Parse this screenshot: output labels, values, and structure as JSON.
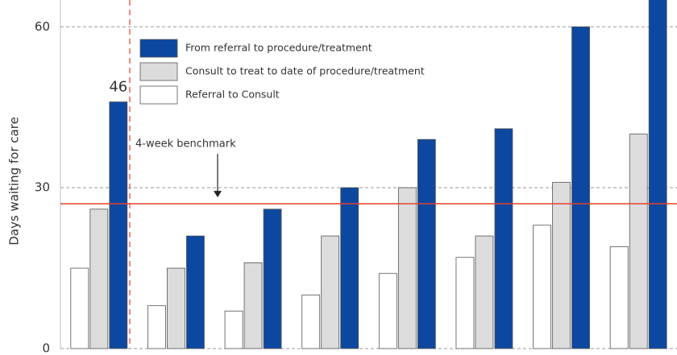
{
  "chart_data": {
    "type": "bar",
    "y_label": "Days waiting for care",
    "categories": [
      null,
      null,
      null,
      null,
      null,
      null,
      null,
      null
    ],
    "series": [
      {
        "name": "From referral to procedure/treatment",
        "color": "#0d48a0",
        "values": [
          46,
          21,
          26,
          30,
          39,
          41,
          60,
          66
        ]
      },
      {
        "name": "Consult to treat to date of procedure/treatment",
        "color": "#dcdcdc",
        "values": [
          26,
          15,
          16,
          21,
          30,
          21,
          31,
          40
        ]
      },
      {
        "name": "Referral to Consult",
        "color": "#ffffff",
        "values": [
          15,
          8,
          7,
          10,
          14,
          17,
          23,
          19
        ]
      }
    ],
    "ylim": [
      0,
      65
    ],
    "yticks": [
      0,
      30,
      60
    ],
    "grid": true,
    "benchmark": {
      "value": 27,
      "label": "4-week benchmark",
      "color": "#e8402a"
    }
  }
}
